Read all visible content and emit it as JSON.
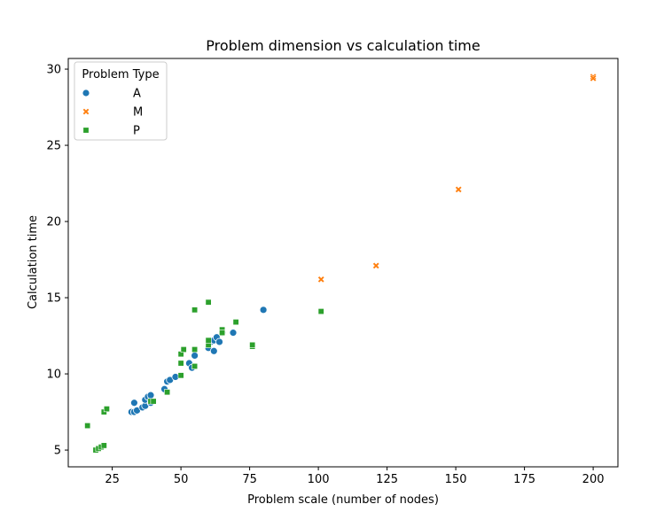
{
  "chart_data": {
    "type": "scatter",
    "title": "Problem dimension vs calculation time",
    "xlabel": "Problem scale (number of nodes)",
    "ylabel": "Calculation time",
    "xlim": [
      9,
      209
    ],
    "ylim": [
      3.9,
      30.7
    ],
    "xticks": [
      25,
      50,
      75,
      100,
      125,
      150,
      175,
      200
    ],
    "yticks": [
      5,
      10,
      15,
      20,
      25,
      30
    ],
    "grid": false,
    "legend": {
      "title": "Problem Type",
      "placement": "top-left"
    },
    "series": [
      {
        "name": "A",
        "color": "#1f77b4",
        "marker": "circle",
        "points": [
          [
            32,
            7.5
          ],
          [
            33,
            7.5
          ],
          [
            34,
            7.6
          ],
          [
            33,
            8.1
          ],
          [
            36,
            7.8
          ],
          [
            37,
            7.9
          ],
          [
            37,
            8.3
          ],
          [
            38,
            8.5
          ],
          [
            39,
            8.6
          ],
          [
            39,
            8.1
          ],
          [
            44,
            9.0
          ],
          [
            45,
            9.5
          ],
          [
            46,
            9.6
          ],
          [
            48,
            9.8
          ],
          [
            53,
            10.7
          ],
          [
            54,
            10.4
          ],
          [
            55,
            11.2
          ],
          [
            60,
            11.7
          ],
          [
            61,
            12.1
          ],
          [
            62,
            12.2
          ],
          [
            63,
            12.4
          ],
          [
            64,
            12.1
          ],
          [
            65,
            12.7
          ],
          [
            62,
            11.5
          ],
          [
            69,
            12.7
          ],
          [
            80,
            14.2
          ]
        ]
      },
      {
        "name": "M",
        "color": "#ff7f0e",
        "marker": "x",
        "points": [
          [
            101,
            16.2
          ],
          [
            121,
            17.1
          ],
          [
            151,
            22.1
          ],
          [
            200,
            29.5
          ],
          [
            200,
            29.4
          ]
        ]
      },
      {
        "name": "P",
        "color": "#2ca02c",
        "marker": "square",
        "points": [
          [
            16,
            6.6
          ],
          [
            19,
            5.0
          ],
          [
            20,
            5.1
          ],
          [
            21,
            5.2
          ],
          [
            22,
            5.3
          ],
          [
            22,
            7.5
          ],
          [
            23,
            7.7
          ],
          [
            39,
            8.2
          ],
          [
            40,
            8.2
          ],
          [
            45,
            8.8
          ],
          [
            50,
            9.9
          ],
          [
            50,
            10.7
          ],
          [
            50,
            11.3
          ],
          [
            51,
            11.6
          ],
          [
            55,
            10.5
          ],
          [
            55,
            11.6
          ],
          [
            55,
            14.2
          ],
          [
            60,
            11.9
          ],
          [
            60,
            12.2
          ],
          [
            60,
            14.7
          ],
          [
            65,
            12.9
          ],
          [
            65,
            12.7
          ],
          [
            70,
            13.4
          ],
          [
            76,
            11.8
          ],
          [
            76,
            11.9
          ],
          [
            101,
            14.1
          ]
        ]
      }
    ]
  }
}
